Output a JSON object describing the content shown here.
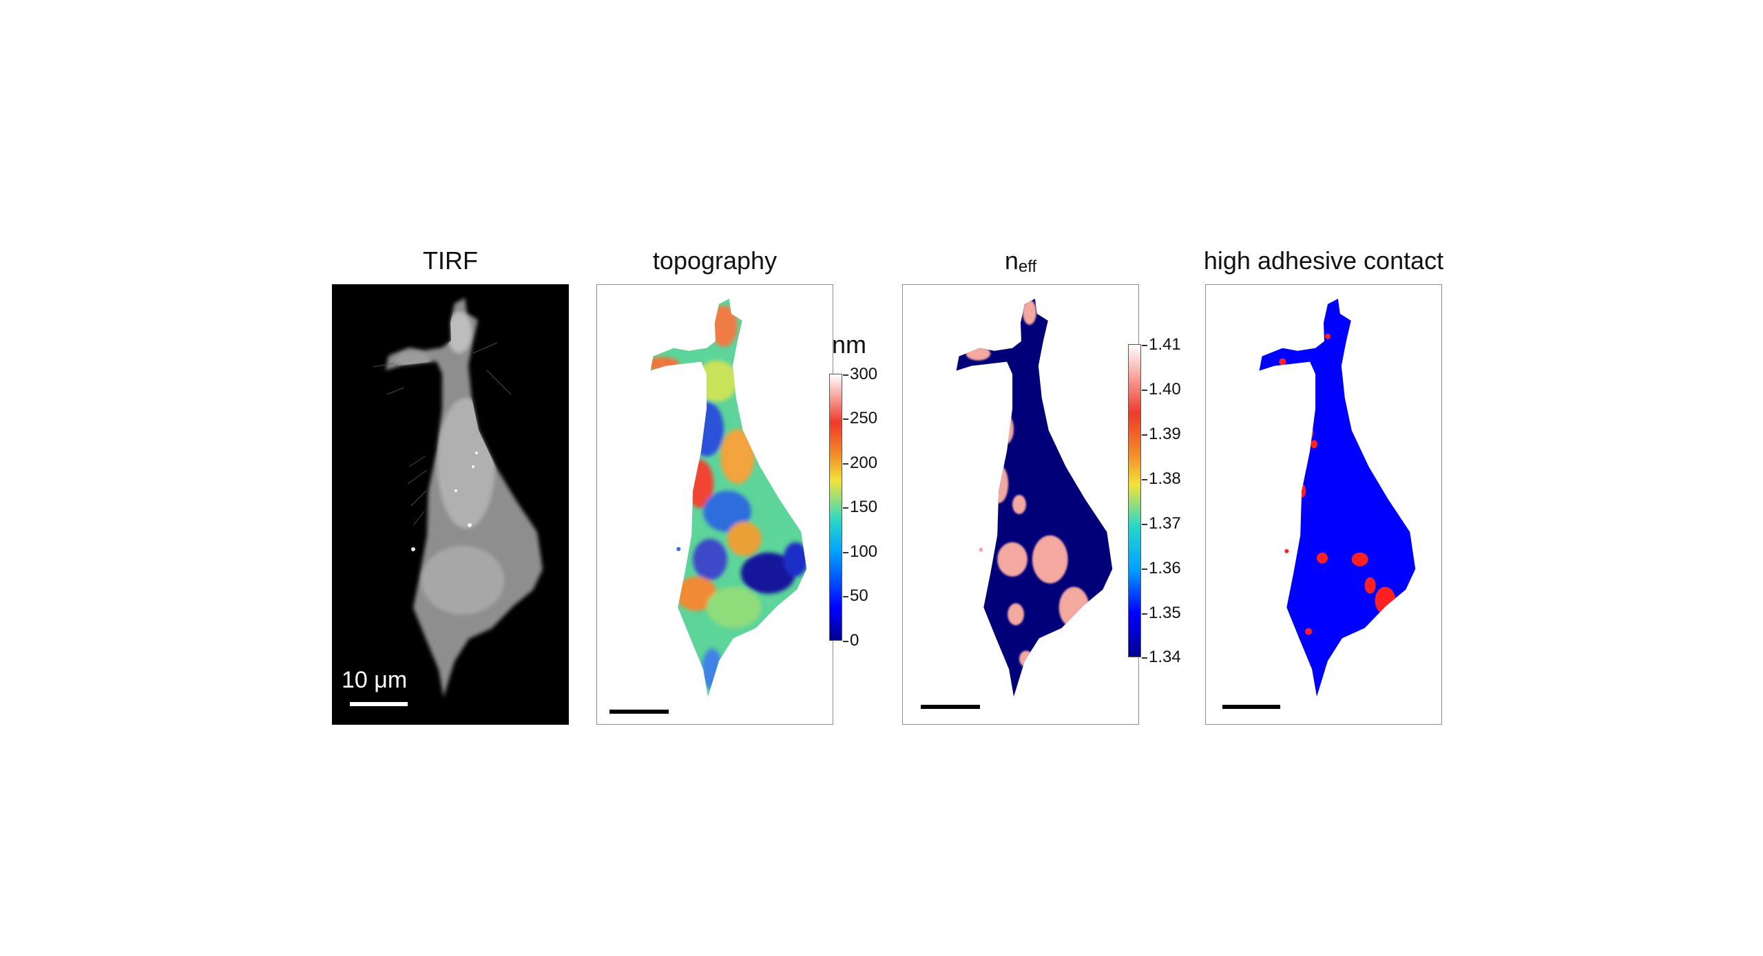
{
  "panels": [
    {
      "title": "TIRF",
      "scale_label": "10 μm"
    },
    {
      "title": "topography",
      "colorbar": {
        "unit": "nm",
        "ticks": [
          "300",
          "250",
          "200",
          "150",
          "100",
          "50",
          "0"
        ]
      }
    },
    {
      "title_main": "n",
      "title_sub": "eff",
      "colorbar": {
        "ticks": [
          "1.41",
          "1.40",
          "1.39",
          "1.38",
          "1.37",
          "1.36",
          "1.35",
          "1.34"
        ]
      }
    },
    {
      "title": "high adhesive contact"
    }
  ],
  "colors": {
    "jet_low": "#00008f",
    "jet_mid": "#1fd0c8",
    "jet_high": "#ee3a2a",
    "top": "#ffffff",
    "adhesive_low": "#0000ff",
    "adhesive_high": "#ff2020",
    "neff_base": "#020079",
    "neff_high": "#f3a8a0"
  }
}
